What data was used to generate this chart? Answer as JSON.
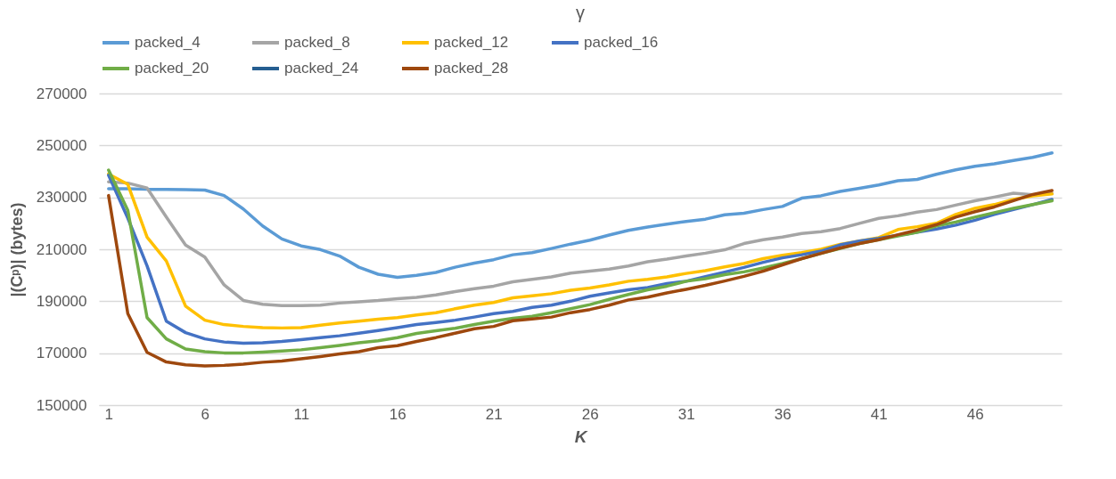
{
  "chart_data": {
    "type": "line",
    "title": "γ",
    "xlabel": "K",
    "ylabel": "|(Cᵖ)| (bytes)",
    "x": [
      1,
      2,
      3,
      4,
      5,
      6,
      7,
      8,
      9,
      10,
      11,
      12,
      13,
      14,
      15,
      16,
      17,
      18,
      19,
      20,
      21,
      22,
      23,
      24,
      25,
      26,
      27,
      28,
      29,
      30,
      31,
      32,
      33,
      34,
      35,
      36,
      37,
      38,
      39,
      40,
      41,
      42,
      43,
      44,
      45,
      46,
      47,
      48,
      49,
      50
    ],
    "xlim": [
      0.5,
      50.5
    ],
    "xticks": [
      1,
      6,
      11,
      16,
      21,
      26,
      31,
      36,
      41,
      46
    ],
    "ylim": [
      150000,
      270000
    ],
    "yticks": [
      150000,
      170000,
      190000,
      210000,
      230000,
      250000,
      270000
    ],
    "grid": "y",
    "legend": "top",
    "marker": "none",
    "line_style": "solid",
    "series": [
      {
        "name": "packed_4",
        "color": "#5b9bd5",
        "values": [
          233300,
          233300,
          233100,
          233100,
          233000,
          232800,
          230700,
          225500,
          219000,
          214000,
          211300,
          209900,
          207400,
          203100,
          200400,
          199200,
          200000,
          201100,
          203100,
          204700,
          206000,
          207900,
          208700,
          210300,
          212000,
          213500,
          215500,
          217300,
          218600,
          219700,
          220700,
          221600,
          223300,
          223900,
          225300,
          226500,
          229700,
          230600,
          232300,
          233500,
          234800,
          236400,
          236900,
          238900,
          240600,
          242000,
          242900,
          244200,
          245400,
          247100
        ]
      },
      {
        "name": "packed_8",
        "color": "#a5a5a5",
        "values": [
          236000,
          235500,
          233600,
          222400,
          211600,
          207000,
          196300,
          190300,
          188800,
          188300,
          188300,
          188500,
          189300,
          189800,
          190300,
          191000,
          191500,
          192400,
          193700,
          194800,
          195800,
          197500,
          198400,
          199400,
          200800,
          201600,
          202400,
          203600,
          205200,
          206200,
          207400,
          208500,
          209800,
          212200,
          213700,
          214700,
          216100,
          216800,
          218000,
          220000,
          221900,
          222900,
          224300,
          225300,
          227000,
          228700,
          230100,
          231600,
          231000,
          231500
        ]
      },
      {
        "name": "packed_12",
        "color": "#ffc000",
        "values": [
          239000,
          235000,
          214700,
          205500,
          188100,
          182700,
          181000,
          180300,
          179800,
          179700,
          179800,
          180800,
          181600,
          182300,
          183100,
          183700,
          184700,
          185600,
          187100,
          188500,
          189500,
          191300,
          192100,
          192900,
          194200,
          195100,
          196300,
          197700,
          198400,
          199400,
          200700,
          201800,
          203200,
          204500,
          206400,
          207700,
          208700,
          210000,
          211900,
          213200,
          214500,
          217600,
          218700,
          220000,
          223400,
          225800,
          227200,
          229200,
          230600,
          231300
        ]
      },
      {
        "name": "packed_16",
        "color": "#4472c4",
        "values": [
          238500,
          222000,
          203600,
          182300,
          177900,
          175500,
          174300,
          173800,
          174000,
          174500,
          175200,
          176000,
          176700,
          177700,
          178700,
          179800,
          181000,
          181800,
          182700,
          183900,
          185200,
          186100,
          187600,
          188500,
          190000,
          191900,
          193200,
          194400,
          195300,
          196800,
          197700,
          199500,
          201200,
          203000,
          205000,
          206700,
          207900,
          209300,
          211700,
          213200,
          214200,
          215400,
          216600,
          217800,
          219300,
          221200,
          223400,
          225300,
          227200,
          229200
        ]
      },
      {
        "name": "packed_20",
        "color": "#70ad47",
        "values": [
          240500,
          225000,
          183700,
          175500,
          171600,
          170600,
          170100,
          170100,
          170400,
          170800,
          171300,
          172100,
          173000,
          174000,
          174800,
          176000,
          177600,
          178600,
          179600,
          181000,
          182300,
          183400,
          184200,
          185600,
          187100,
          188700,
          190700,
          192600,
          194400,
          195800,
          197700,
          198700,
          200200,
          201300,
          202800,
          204500,
          206400,
          208400,
          210300,
          212200,
          213700,
          215100,
          216600,
          219000,
          220500,
          222400,
          224100,
          225800,
          227200,
          228700
        ]
      },
      {
        "name": "packed_24",
        "color": "#255e91",
        "values": [
          null,
          null,
          null,
          null,
          null,
          null,
          null,
          null,
          null,
          null,
          null,
          null,
          null,
          null,
          null,
          null,
          null,
          null,
          null,
          null,
          null,
          null,
          null,
          null,
          null,
          null,
          null,
          null,
          null,
          null,
          null,
          null,
          null,
          null,
          null,
          null,
          null,
          null,
          null,
          null,
          null,
          null,
          null,
          null,
          null,
          null,
          null,
          null,
          null,
          null
        ]
      },
      {
        "name": "packed_28",
        "color": "#9e480e",
        "values": [
          230700,
          185200,
          170300,
          166600,
          165500,
          165100,
          165300,
          165800,
          166500,
          167000,
          167800,
          168700,
          169700,
          170600,
          172100,
          172900,
          174500,
          176000,
          177700,
          179400,
          180300,
          182500,
          183200,
          183900,
          185600,
          186800,
          188500,
          190500,
          191600,
          193200,
          194600,
          196100,
          197800,
          199600,
          201600,
          204000,
          206400,
          208400,
          210500,
          212200,
          213700,
          215600,
          217400,
          219500,
          222400,
          224500,
          226300,
          228700,
          231100,
          232600
        ]
      }
    ]
  }
}
